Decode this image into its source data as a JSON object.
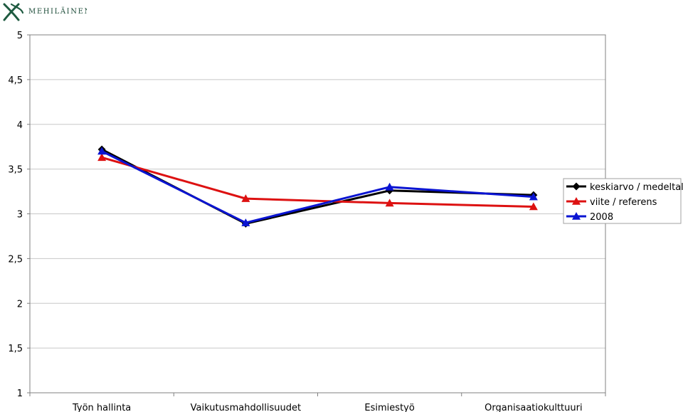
{
  "brand": {
    "name": "MEHILÄINEN",
    "color": "#1e5a40",
    "icon": "mehilainen-logo-icon"
  },
  "chart_data": {
    "type": "line",
    "title": "",
    "xlabel": "",
    "ylabel": "",
    "categories": [
      "Työn hallinta",
      "Vaikutusmahdollisuudet",
      "Esimiestyö",
      "Organisaatiokulttuuri"
    ],
    "ylim": [
      1,
      5
    ],
    "yticks": [
      1,
      1.5,
      2,
      2.5,
      3,
      3.5,
      4,
      4.5,
      5
    ],
    "ytick_labels": [
      "1",
      "1,5",
      "2",
      "2,5",
      "3",
      "3,5",
      "4",
      "4,5",
      "5"
    ],
    "grid": true,
    "legend_position": "right",
    "series": [
      {
        "name": "keskiarvo / medeltal",
        "values": [
          3.72,
          2.89,
          3.26,
          3.21
        ],
        "color": "#000000",
        "marker": "diamond"
      },
      {
        "name": "viite / referens",
        "values": [
          3.63,
          3.17,
          3.12,
          3.08
        ],
        "color": "#dd1111",
        "marker": "triangle"
      },
      {
        "name": "2008",
        "values": [
          3.7,
          2.9,
          3.3,
          3.19
        ],
        "color": "#0a14d2",
        "marker": "triangle"
      }
    ]
  }
}
